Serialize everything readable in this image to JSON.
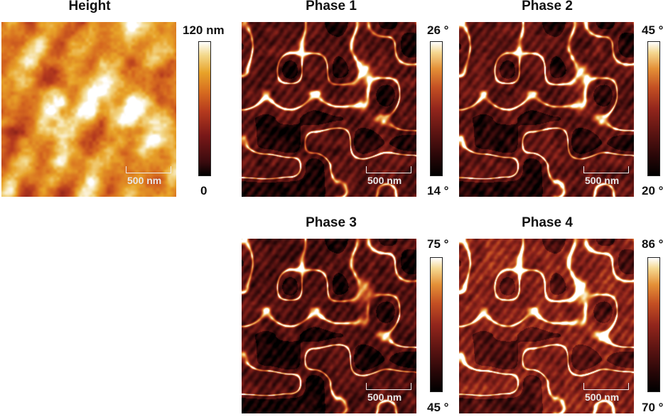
{
  "panels": [
    {
      "id": "height",
      "title": "Height",
      "scale_label": "500 nm",
      "cbar_max": "120 nm",
      "cbar_min": "0",
      "colormap": "height"
    },
    {
      "id": "phase1",
      "title": "Phase 1",
      "scale_label": "500 nm",
      "cbar_max": "26 °",
      "cbar_min": "14 °",
      "colormap": "phase"
    },
    {
      "id": "phase2",
      "title": "Phase 2",
      "scale_label": "500 nm",
      "cbar_max": "45 °",
      "cbar_min": "20 °",
      "colormap": "phase"
    },
    {
      "id": "phase3",
      "title": "Phase 3",
      "scale_label": "500 nm",
      "cbar_max": "75 °",
      "cbar_min": "45 °",
      "colormap": "phase"
    },
    {
      "id": "phase4",
      "title": "Phase 4",
      "scale_label": "500 nm",
      "cbar_max": "86 °",
      "cbar_min": "70 °",
      "colormap": "phase"
    }
  ],
  "colors": {
    "background": "#ffffff",
    "scale_bar": "#eeeeee"
  }
}
